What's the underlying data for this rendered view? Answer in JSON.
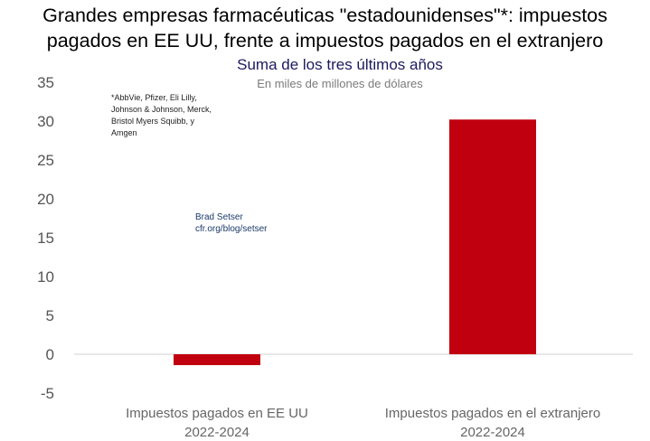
{
  "title_line1": "Grandes empresas farmacéuticas \"estadounidenses\"*: impuestos",
  "title_line2": "pagados en EE UU, frente a impuestos pagados en el extranjero",
  "subtitle": "Suma de los tres últimos años",
  "unit_note": "En miles de millones de dólares",
  "footnote_line1": "*AbbVie, Pfizer, Eli Lilly,",
  "footnote_line2": "Johnson & Johnson, Merck,",
  "footnote_line3": "Bristol Myers Squibb, y",
  "footnote_line4": "Amgen",
  "credit_line1": "Brad Setser",
  "credit_line2": "cfr.org/blog/setser",
  "chart_data": {
    "type": "bar",
    "title": "Grandes empresas farmacéuticas \"estadounidenses\"*: impuestos pagados en EE UU, frente a impuestos pagados en el extranjero",
    "subtitle": "Suma de los tres últimos años",
    "ylabel": "",
    "xlabel": "",
    "ylim": [
      -5,
      35
    ],
    "yticks": [
      35,
      30,
      25,
      20,
      15,
      10,
      5,
      0,
      -5
    ],
    "grid": false,
    "categories": [
      [
        "Impuestos pagados en EE UU",
        "2022-2024"
      ],
      [
        "Impuestos pagados en el extranjero",
        "2022-2024"
      ]
    ],
    "values": [
      -1.4,
      30.2
    ],
    "bar_color": "#c0000f"
  }
}
